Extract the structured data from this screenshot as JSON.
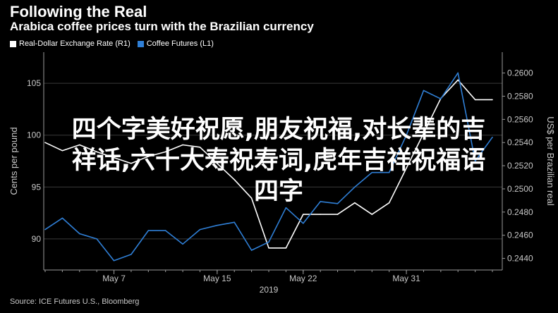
{
  "header": {
    "title": "Following the Real",
    "subtitle": "Arabica coffee prices turn with the Brazilian currency"
  },
  "legend": {
    "items": [
      {
        "label": "Real-Dollar Exchange Rate (R1)",
        "color": "#ffffff"
      },
      {
        "label": "Coffee Futures (L1)",
        "color": "#2f7fd6"
      }
    ]
  },
  "source": "Source: ICE Futures U.S., Bloomberg",
  "overlay_text": "四个字美好祝愿,朋友祝福,对长辈的吉\n祥话,六十大寿祝寿词,虎年吉祥祝福语\n四字",
  "chart_data": {
    "type": "line",
    "x_tick_labels": [
      "May 7",
      "May 15",
      "May 22",
      "May 31"
    ],
    "x_year_label": "2019",
    "left_axis": {
      "label": "Cents per pound",
      "range": [
        87,
        108
      ],
      "ticks": [
        "90",
        "95",
        "100",
        "105"
      ]
    },
    "right_axis": {
      "label": "US$ per Brazilian real",
      "range": [
        0.243,
        0.2618
      ],
      "ticks": [
        "0.2440",
        "0.2460",
        "0.2480",
        "0.2500",
        "0.2520",
        "0.2540",
        "0.2560",
        "0.2580",
        "0.2600"
      ]
    },
    "series": [
      {
        "name": "Real-Dollar Exchange Rate",
        "axis": "right",
        "color": "#ffffff",
        "values": [
          0.254,
          0.2533,
          0.2538,
          0.2532,
          0.2527,
          0.2522,
          0.2528,
          0.2532,
          0.2538,
          0.2536,
          0.2522,
          0.2508,
          0.2492,
          0.2449,
          0.2449,
          0.2478,
          0.2478,
          0.2478,
          0.2488,
          0.2478,
          0.2488,
          0.2518,
          0.2548,
          0.2578,
          0.2594,
          0.2577,
          0.2577
        ]
      },
      {
        "name": "Coffee Futures",
        "axis": "left",
        "color": "#2f7fd6",
        "values": [
          90.9,
          92.0,
          90.5,
          90.0,
          87.9,
          88.5,
          90.8,
          90.8,
          89.5,
          90.9,
          91.3,
          91.6,
          88.9,
          89.7,
          93.0,
          91.5,
          93.6,
          93.4,
          95.0,
          96.4,
          96.4,
          100.0,
          104.3,
          103.5,
          106.0,
          97.5,
          99.8
        ]
      }
    ]
  }
}
